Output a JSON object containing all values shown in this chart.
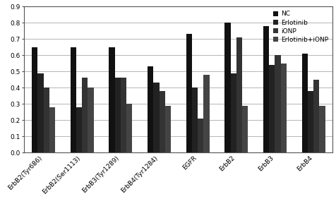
{
  "categories": [
    "ErbB2(Tyr686)",
    "ErbB2(Ser1113)",
    "ErbB3(Tyr1289)",
    "ErbB4(Tyr1284)",
    "EGFR",
    "ErbB2",
    "ErbB3",
    "ErbB4"
  ],
  "series": {
    "NC": [
      0.65,
      0.65,
      0.65,
      0.53,
      0.73,
      0.8,
      0.78,
      0.61
    ],
    "Erlotinib": [
      0.49,
      0.28,
      0.46,
      0.43,
      0.4,
      0.49,
      0.54,
      0.38
    ],
    "iONP": [
      0.4,
      0.46,
      0.46,
      0.38,
      0.21,
      0.71,
      0.6,
      0.45
    ],
    "Erlotinib+iONP": [
      0.28,
      0.4,
      0.3,
      0.29,
      0.48,
      0.29,
      0.55,
      0.29
    ]
  },
  "series_order": [
    "NC",
    "Erlotinib",
    "iONP",
    "Erlotinib+iONP"
  ],
  "bar_colors": {
    "NC": "#111111",
    "Erlotinib": "#222222",
    "iONP": "#333333",
    "Erlotinib+iONP": "#444444"
  },
  "ylim": [
    0,
    0.9
  ],
  "yticks": [
    0,
    0.1,
    0.2,
    0.3,
    0.4,
    0.5,
    0.6,
    0.7,
    0.8,
    0.9
  ],
  "grid_color": "#aaaaaa",
  "background_color": "#ffffff",
  "legend_fontsize": 6.5,
  "tick_fontsize": 6.5,
  "bar_width": 0.15,
  "figsize": [
    4.77,
    2.82
  ],
  "dpi": 100
}
